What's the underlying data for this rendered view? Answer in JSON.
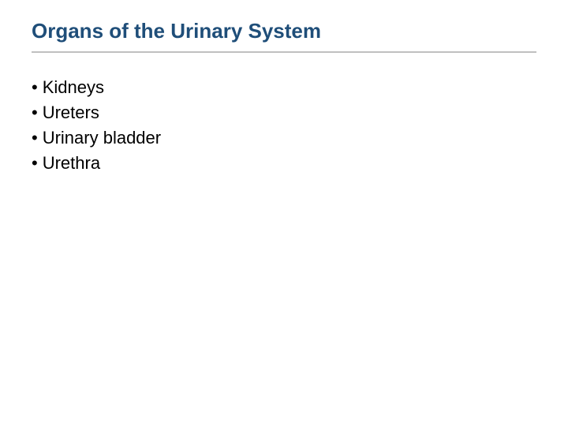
{
  "title": {
    "text": "Organs of the Urinary System",
    "color": "#1f4e79",
    "fontsize": 26,
    "fontweight": "bold",
    "underline_color": "#c0c0c0"
  },
  "bullets": {
    "marker": "•",
    "fontsize": 22,
    "color": "#000000",
    "items": [
      "Kidneys",
      "Ureters",
      "Urinary bladder",
      "Urethra"
    ]
  },
  "background_color": "#ffffff"
}
